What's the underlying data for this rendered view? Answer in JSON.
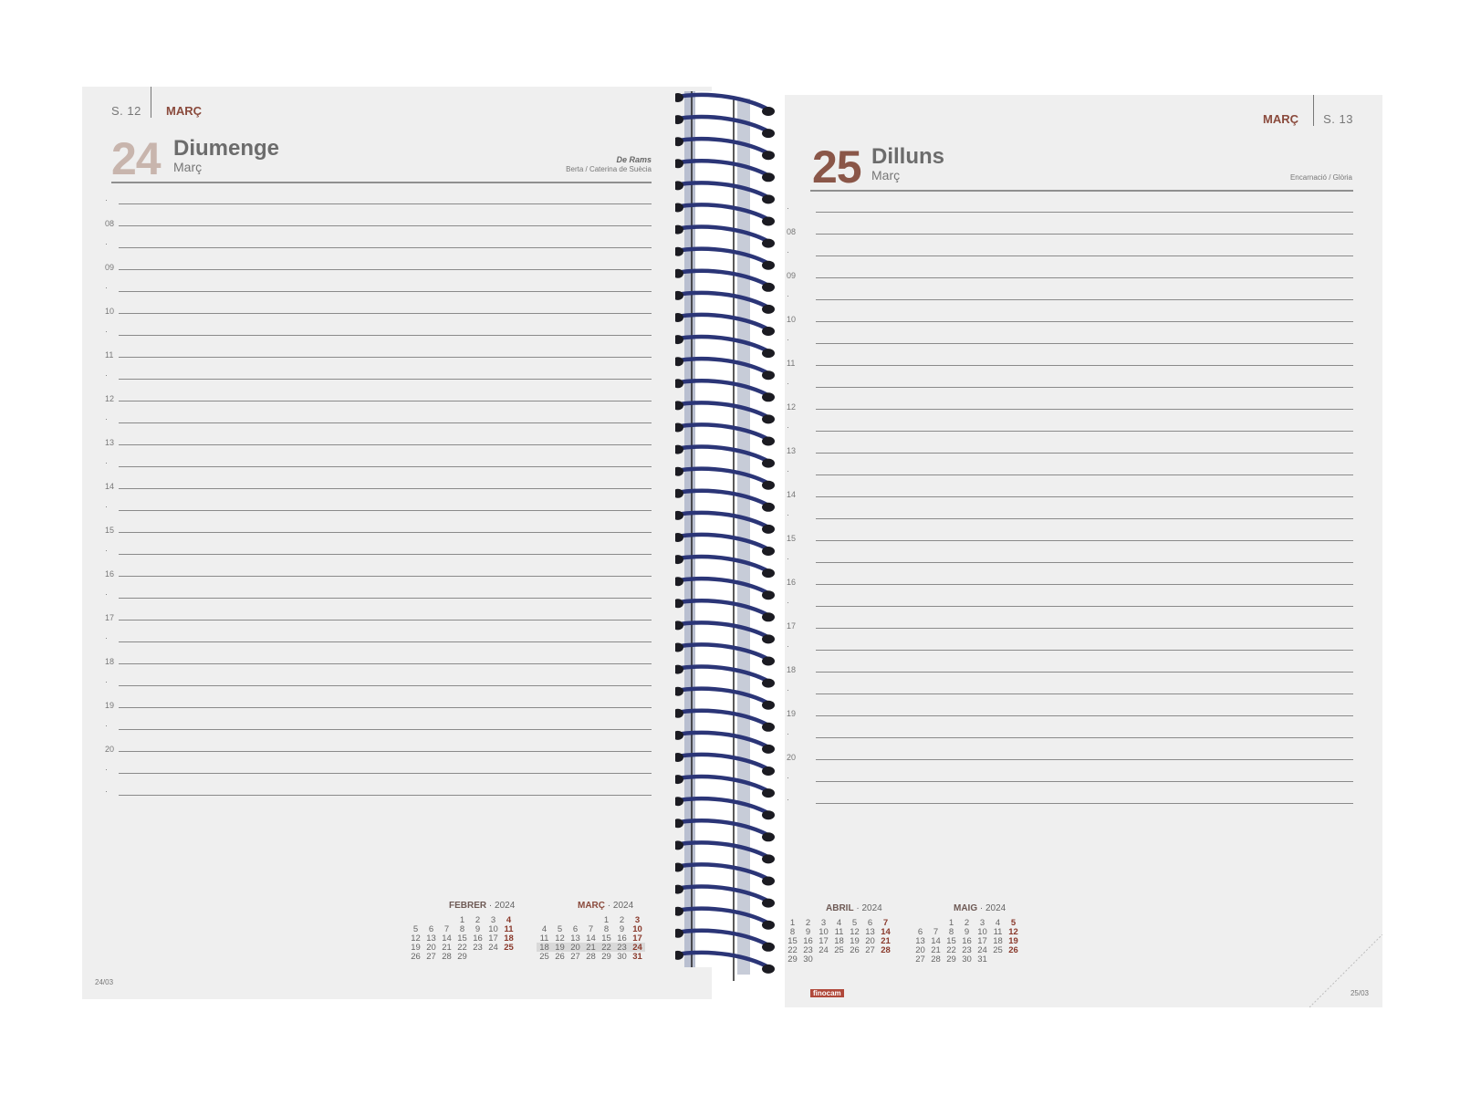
{
  "left_page": {
    "week": "S. 12",
    "month_header": "MARÇ",
    "day_number": "24",
    "day_name": "Diumenge",
    "day_month": "Març",
    "feast": "De Rams",
    "saints": "Berta / Caterina de Suècia",
    "hours": [
      "08",
      "09",
      "10",
      "11",
      "12",
      "13",
      "14",
      "15",
      "16",
      "17",
      "18",
      "19",
      "20"
    ],
    "footer_date": "24/03",
    "day_number_color": "#c8b5ad",
    "calendars": [
      {
        "month": "FEBRER",
        "year": "2024",
        "current": false,
        "weeks": [
          [
            "",
            "",
            "",
            "1",
            "2",
            "3",
            "4"
          ],
          [
            "5",
            "6",
            "7",
            "8",
            "9",
            "10",
            "11"
          ],
          [
            "12",
            "13",
            "14",
            "15",
            "16",
            "17",
            "18"
          ],
          [
            "19",
            "20",
            "21",
            "22",
            "23",
            "24",
            "25"
          ],
          [
            "26",
            "27",
            "28",
            "29",
            "",
            "",
            ""
          ]
        ]
      },
      {
        "month": "MARÇ",
        "year": "2024",
        "current": true,
        "weeks": [
          [
            "",
            "",
            "",
            "",
            "1",
            "2",
            "3"
          ],
          [
            "4",
            "5",
            "6",
            "7",
            "8",
            "9",
            "10"
          ],
          [
            "11",
            "12",
            "13",
            "14",
            "15",
            "16",
            "17"
          ],
          [
            "18",
            "19",
            "20",
            "21",
            "22",
            "23",
            "24"
          ],
          [
            "25",
            "26",
            "27",
            "28",
            "29",
            "30",
            "31"
          ]
        ]
      }
    ]
  },
  "right_page": {
    "week": "S. 13",
    "month_header": "MARÇ",
    "day_number": "25",
    "day_name": "Dilluns",
    "day_month": "Març",
    "saints": "Encarnació / Glòria",
    "hours": [
      "08",
      "09",
      "10",
      "11",
      "12",
      "13",
      "14",
      "15",
      "16",
      "17",
      "18",
      "19",
      "20"
    ],
    "footer_date": "25/03",
    "brand": "finocam",
    "day_number_color": "#8a5648",
    "calendars": [
      {
        "month": "ABRIL",
        "year": "2024",
        "current": false,
        "weeks": [
          [
            "1",
            "2",
            "3",
            "4",
            "5",
            "6",
            "7"
          ],
          [
            "8",
            "9",
            "10",
            "11",
            "12",
            "13",
            "14"
          ],
          [
            "15",
            "16",
            "17",
            "18",
            "19",
            "20",
            "21"
          ],
          [
            "22",
            "23",
            "24",
            "25",
            "26",
            "27",
            "28"
          ],
          [
            "29",
            "30",
            "",
            "",
            "",
            "",
            ""
          ]
        ]
      },
      {
        "month": "MAIG",
        "year": "2024",
        "current": false,
        "weeks": [
          [
            "",
            "",
            "1",
            "2",
            "3",
            "4",
            "5"
          ],
          [
            "6",
            "7",
            "8",
            "9",
            "10",
            "11",
            "12"
          ],
          [
            "13",
            "14",
            "15",
            "16",
            "17",
            "18",
            "19"
          ],
          [
            "20",
            "21",
            "22",
            "23",
            "24",
            "25",
            "26"
          ],
          [
            "27",
            "28",
            "29",
            "30",
            "31",
            "",
            ""
          ]
        ]
      }
    ]
  },
  "colors": {
    "page": "#efefef",
    "accent_month": "#8a4a3c",
    "spiral": "#2b3577"
  }
}
